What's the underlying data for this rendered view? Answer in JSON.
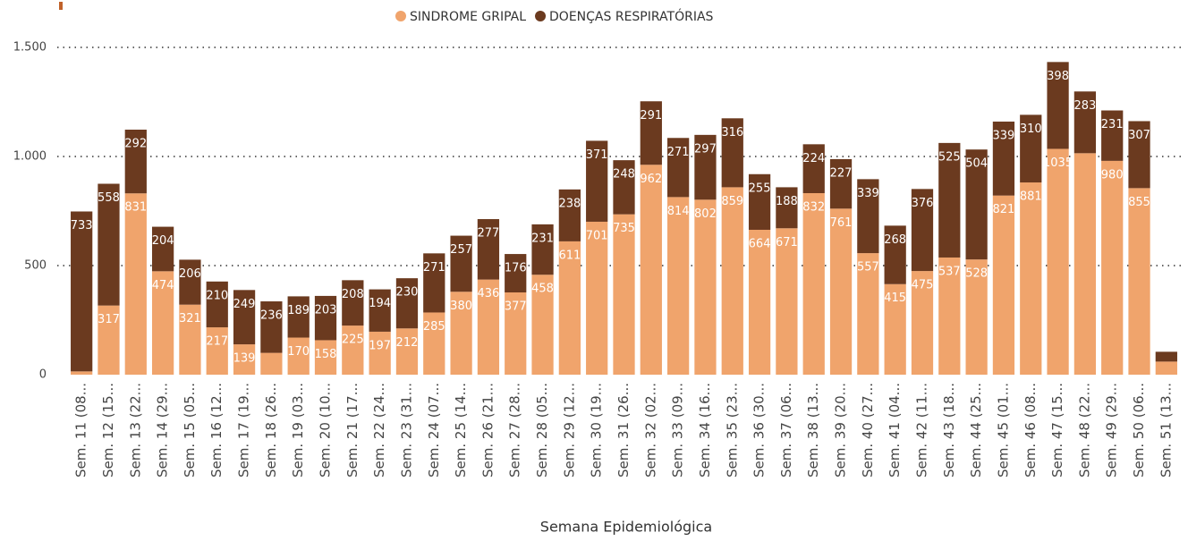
{
  "chart_data": {
    "type": "stacked_bar",
    "x_label": "Semana Epidemiológica",
    "categories": [
      "Sem. 11 (08...",
      "Sem. 12 (15...",
      "Sem. 13 (22...",
      "Sem. 14 (29...",
      "Sem. 15 (05...",
      "Sem. 16 (12...",
      "Sem. 17 (19...",
      "Sem. 18 (26...",
      "Sem. 19 (03...",
      "Sem. 20 (10...",
      "Sem. 21 (17...",
      "Sem. 22 (24...",
      "Sem. 23 (31...",
      "Sem. 24 (07...",
      "Sem. 25 (14...",
      "Sem. 26 (21...",
      "Sem. 27 (28...",
      "Sem. 28 (05...",
      "Sem. 29 (12...",
      "Sem. 30 (19...",
      "Sem. 31 (26...",
      "Sem. 32 (02...",
      "Sem. 33 (09...",
      "Sem. 34 (16...",
      "Sem. 35 (23...",
      "Sem. 36 (30...",
      "Sem. 37 (06...",
      "Sem. 38 (13...",
      "Sem. 39 (20...",
      "Sem. 40 (27...",
      "Sem. 41 (04...",
      "Sem. 42 (11...",
      "Sem. 43 (18...",
      "Sem. 44 (25...",
      "Sem. 45 (01...",
      "Sem. 46 (08...",
      "Sem. 47 (15...",
      "Sem. 48 (22...",
      "Sem. 49 (29...",
      "Sem. 50 (06...",
      "Sem. 51 (13..."
    ],
    "series": [
      {
        "name": "SINDROME GRIPAL",
        "color": "#f0a46c",
        "values": [
          15,
          317,
          831,
          474,
          321,
          217,
          139,
          100,
          170,
          158,
          225,
          197,
          212,
          285,
          380,
          436,
          377,
          458,
          611,
          701,
          735,
          962,
          814,
          802,
          859,
          664,
          671,
          832,
          761,
          557,
          415,
          475,
          537,
          528,
          821,
          881,
          1035,
          1015,
          980,
          855,
          60
        ],
        "value_labels": [
          null,
          "317",
          "831",
          "474",
          "321",
          "217",
          "139",
          null,
          "170",
          "158",
          "225",
          "197",
          "212",
          "285",
          "380",
          "436",
          "377",
          "458",
          "611",
          "701",
          "735",
          "962",
          "814",
          "802",
          "859",
          "664",
          "671",
          "832",
          "761",
          "557",
          "415",
          "475",
          "537",
          "528",
          "821",
          "881",
          "1035",
          null,
          "980",
          "855",
          null
        ]
      },
      {
        "name": "DOENÇAS RESPIRATÓRIAS",
        "color": "#6b3a1f",
        "values": [
          733,
          558,
          292,
          204,
          206,
          210,
          249,
          236,
          189,
          203,
          208,
          194,
          230,
          271,
          257,
          277,
          176,
          231,
          238,
          371,
          248,
          291,
          271,
          297,
          316,
          255,
          188,
          224,
          227,
          339,
          268,
          376,
          525,
          504,
          339,
          310,
          398,
          283,
          231,
          307,
          45
        ],
        "value_labels": [
          "733",
          "558",
          "292",
          "204",
          "206",
          "210",
          "249",
          "236",
          "189",
          "203",
          "208",
          "194",
          "230",
          "271",
          "257",
          "277",
          "176",
          "231",
          "238",
          "371",
          "248",
          "291",
          "271",
          "297",
          "316",
          "255",
          "188",
          "224",
          "227",
          "339",
          "268",
          "376",
          "525",
          "504",
          "339",
          "310",
          "398",
          "283",
          "231",
          "307",
          null
        ]
      }
    ],
    "ylim": [
      0,
      1500
    ],
    "yticks": [
      0,
      500,
      {
        "value": 1000,
        "label": "1.000"
      },
      {
        "value": 1500,
        "label": "1.500"
      }
    ],
    "grid": true
  }
}
